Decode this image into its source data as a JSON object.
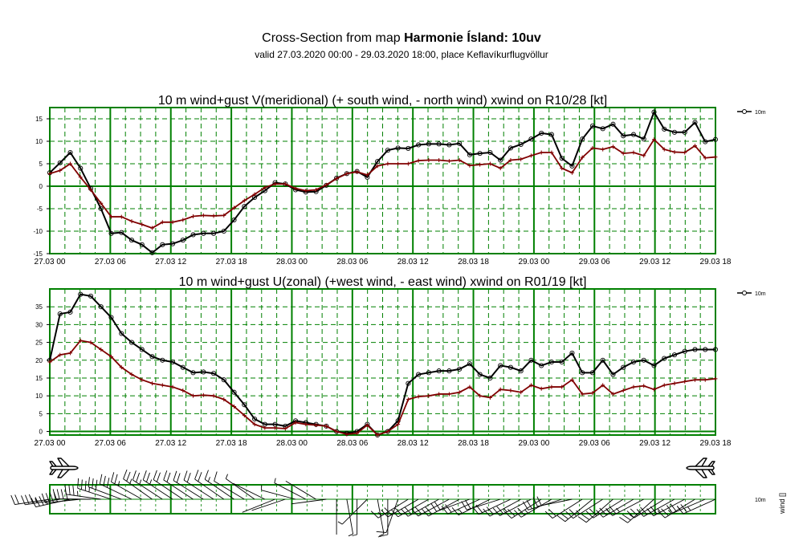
{
  "header": {
    "title_prefix": "Cross-Section from map ",
    "title_bold": "Harmonie Ísland: 10uv",
    "subtitle": "valid 27.03.2020 00:00 - 29.03.2020 18:00, place Keflavíkurflugvöllur"
  },
  "colors": {
    "grid": "#008000",
    "wind_line": "#000000",
    "gust_line": "#800000"
  },
  "chart_data": [
    {
      "type": "line",
      "title": "10 m wind+gust V(meridional) (+ south wind, - north wind) xwind on R10/28 [kt]",
      "legend": "10m",
      "legend_position": "top-right",
      "x_tick_labels": [
        "27.03 00",
        "27.03 06",
        "27.03 12",
        "27.03 18",
        "28.03 00",
        "28.03 06",
        "28.03 12",
        "28.03 18",
        "29.03 00",
        "29.03 06",
        "29.03 12",
        "29.03 18"
      ],
      "y_tick_labels": [
        "15",
        "10",
        "5",
        "0",
        "-5",
        "-10",
        "-15"
      ],
      "ylim": [
        -15,
        17.5
      ],
      "grid": true,
      "series": [
        {
          "values": [
            3.0,
            5.2,
            7.5,
            4.0,
            -0.5,
            -5.0,
            -10.5,
            -10.3,
            -12.0,
            -13.0,
            -14.8,
            -13.0,
            -12.8,
            -12.0,
            -10.8,
            -10.5,
            -10.5,
            -10.0,
            -7.5,
            -4.5,
            -2.5,
            -1.0,
            0.8,
            0.5,
            -0.8,
            -1.3,
            -1.2,
            0.2,
            1.8,
            2.8,
            3.3,
            2.0,
            5.5,
            8.0,
            8.5,
            8.4,
            9.2,
            9.4,
            9.4,
            9.2,
            9.5,
            7.0,
            7.3,
            7.5,
            5.8,
            8.5,
            9.3,
            10.5,
            11.8,
            11.5,
            6.2,
            4.5,
            10.5,
            13.4,
            12.8,
            13.8,
            11.2,
            11.5,
            10.5,
            16.5,
            12.7,
            12.0,
            12.0,
            14.2,
            9.9,
            10.4
          ]
        },
        {
          "values": [
            2.8,
            3.5,
            5.0,
            2.0,
            -0.8,
            -3.8,
            -6.8,
            -6.8,
            -7.8,
            -8.5,
            -9.3,
            -8.0,
            -8.0,
            -7.5,
            -6.7,
            -6.5,
            -6.6,
            -6.5,
            -4.8,
            -3.2,
            -1.8,
            -0.3,
            0.5,
            0.5,
            -0.5,
            -1.0,
            -0.8,
            0.3,
            1.7,
            2.8,
            3.2,
            2.5,
            4.5,
            5.0,
            5.0,
            5.0,
            5.7,
            5.8,
            5.8,
            5.6,
            5.8,
            4.6,
            4.8,
            5.0,
            4.0,
            5.8,
            6.0,
            6.8,
            7.5,
            7.5,
            4.0,
            3.0,
            6.4,
            8.5,
            8.2,
            8.8,
            7.3,
            7.5,
            6.8,
            10.4,
            8.2,
            7.6,
            7.5,
            9.0,
            6.3,
            6.5
          ]
        }
      ]
    },
    {
      "type": "line",
      "title": "10 m wind+gust U(zonal) (+west wind, - east wind) xwind on R01/19 [kt]",
      "legend": "10m",
      "legend_position": "top-right",
      "x_tick_labels": [
        "27.03 00",
        "27.03 06",
        "27.03 12",
        "27.03 18",
        "28.03 00",
        "28.03 06",
        "28.03 12",
        "28.03 18",
        "29.03 00",
        "29.03 06",
        "29.03 12",
        "29.03 18"
      ],
      "y_tick_labels": [
        "35",
        "30",
        "25",
        "20",
        "15",
        "10",
        "5",
        "0"
      ],
      "ylim": [
        -1,
        40
      ],
      "grid": true,
      "series": [
        {
          "values": [
            20.0,
            33.0,
            33.5,
            38.5,
            38.0,
            35.0,
            32.0,
            27.5,
            25.0,
            23.0,
            21.0,
            20.0,
            19.5,
            18.0,
            16.5,
            16.7,
            16.3,
            14.5,
            11.0,
            7.5,
            3.5,
            2.0,
            2.0,
            1.5,
            3.0,
            2.5,
            2.0,
            1.5,
            0.0,
            -0.5,
            0.0,
            2.0,
            -1.0,
            0.0,
            3.0,
            13.5,
            16.0,
            16.5,
            17.0,
            17.0,
            17.5,
            19.0,
            16.0,
            15.0,
            18.5,
            18.0,
            17.0,
            20.0,
            18.5,
            19.5,
            19.5,
            22.0,
            16.5,
            16.5,
            20.0,
            16.0,
            18.0,
            19.5,
            20.0,
            18.5,
            20.5,
            21.5,
            22.5,
            23.0,
            23.0,
            23.0
          ]
        },
        {
          "values": [
            19.5,
            21.5,
            22.0,
            25.5,
            25.0,
            23.0,
            21.0,
            18.0,
            16.0,
            14.5,
            13.5,
            13.0,
            12.5,
            11.5,
            10.0,
            10.2,
            10.0,
            9.0,
            7.0,
            4.5,
            2.0,
            1.0,
            1.0,
            0.8,
            2.5,
            2.0,
            1.8,
            1.5,
            0.0,
            -0.8,
            -0.5,
            1.8,
            -1.0,
            0.0,
            2.0,
            9.0,
            9.8,
            10.0,
            10.5,
            10.5,
            11.0,
            12.5,
            10.0,
            9.5,
            11.8,
            11.5,
            11.0,
            13.0,
            12.0,
            12.5,
            12.5,
            14.5,
            10.5,
            10.8,
            13.0,
            10.5,
            11.5,
            12.5,
            12.8,
            11.8,
            13.0,
            13.5,
            14.0,
            14.5,
            14.5,
            14.8
          ]
        }
      ]
    }
  ],
  "wind_panel": {
    "legend_label": "10m",
    "side_label": "wind []",
    "icons": [
      "airplane-left",
      "airplane-right"
    ]
  }
}
